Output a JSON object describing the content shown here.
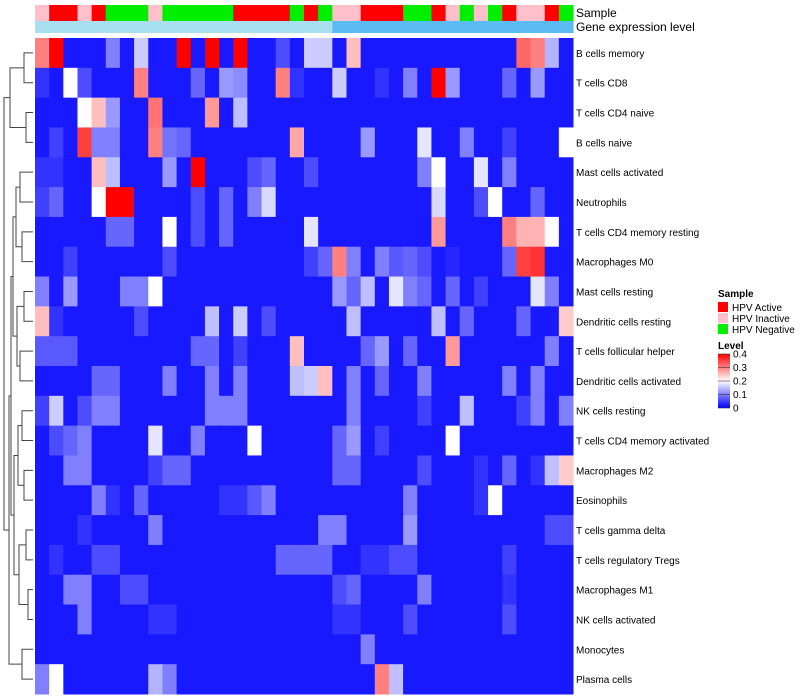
{
  "chart_data": {
    "type": "heatmap",
    "title": "",
    "annotation_labels": [
      "Sample",
      "Gene expression level"
    ],
    "row_labels": [
      "B cells memory",
      "T cells CD8",
      "T cells CD4 naive",
      "B cells naive",
      "Mast cells activated",
      "Neutrophils",
      "T cells CD4 memory resting",
      "Macrophages M0",
      "Mast cells resting",
      "Dendritic cells resting",
      "T cells follicular helper",
      "Dendritic cells activated",
      "NK cells resting",
      "T cells CD4 memory activated",
      "Macrophages M2",
      "Eosinophils",
      "T cells gamma delta",
      "T cells regulatory  Tregs",
      "Macrophages M1",
      "NK cells activated",
      "Monocytes",
      "Plasma cells"
    ],
    "sample_groups": [
      "I",
      "A",
      "A",
      "I",
      "A",
      "N",
      "N",
      "N",
      "I",
      "N",
      "N",
      "N",
      "N",
      "N",
      "A",
      "A",
      "A",
      "A",
      "N",
      "A",
      "N",
      "I",
      "I",
      "A",
      "A",
      "A",
      "N",
      "N",
      "A",
      "I",
      "N",
      "I",
      "N",
      "A",
      "I",
      "I",
      "A",
      "N"
    ],
    "expression_bar": [
      "Low",
      "Low",
      "Low",
      "Low",
      "Low",
      "Low",
      "Low",
      "Low",
      "Low",
      "Low",
      "Low",
      "Low",
      "Low",
      "Low",
      "Low",
      "Low",
      "Low",
      "Low",
      "Low",
      "Low",
      "Low",
      "High",
      "High",
      "High",
      "High",
      "High",
      "High",
      "High",
      "High",
      "High",
      "High",
      "High",
      "High",
      "High",
      "High",
      "High",
      "High",
      "High"
    ],
    "values": [
      [
        0.3,
        0.4,
        0.02,
        0.02,
        0.02,
        0.1,
        0.02,
        0.16,
        0.02,
        0.02,
        0.4,
        0.02,
        0.4,
        0.02,
        0.4,
        0.02,
        0.02,
        0.06,
        0.02,
        0.16,
        0.16,
        0.02,
        0.25,
        0.02,
        0.02,
        0.02,
        0.02,
        0.02,
        0.02,
        0.02,
        0.02,
        0.02,
        0.02,
        0.02,
        0.32,
        0.3,
        0.14,
        0.02
      ],
      [
        0.04,
        0.02,
        0.2,
        0.06,
        0.02,
        0.02,
        0.02,
        0.3,
        0.02,
        0.02,
        0.02,
        0.08,
        0.02,
        0.12,
        0.11,
        0.02,
        0.02,
        0.3,
        0.04,
        0.02,
        0.02,
        0.16,
        0.02,
        0.02,
        0.04,
        0.02,
        0.1,
        0.02,
        0.4,
        0.12,
        0.02,
        0.02,
        0.02,
        0.08,
        0.02,
        0.12,
        0.02,
        0.02
      ],
      [
        0.02,
        0.02,
        0.02,
        0.2,
        0.25,
        0.12,
        0.02,
        0.02,
        0.31,
        0.02,
        0.02,
        0.02,
        0.28,
        0.02,
        0.15,
        0.02,
        0.02,
        0.02,
        0.02,
        0.02,
        0.02,
        0.02,
        0.02,
        0.02,
        0.02,
        0.02,
        0.02,
        0.02,
        0.02,
        0.02,
        0.02,
        0.02,
        0.02,
        0.02,
        0.02,
        0.02,
        0.02,
        0.02
      ],
      [
        0.02,
        0.05,
        0.02,
        0.35,
        0.1,
        0.1,
        0.02,
        0.02,
        0.3,
        0.09,
        0.08,
        0.02,
        0.02,
        0.02,
        0.02,
        0.02,
        0.02,
        0.02,
        0.27,
        0.02,
        0.02,
        0.02,
        0.02,
        0.12,
        0.02,
        0.02,
        0.02,
        0.18,
        0.02,
        0.02,
        0.1,
        0.02,
        0.02,
        0.05,
        0.02,
        0.02,
        0.02,
        0.2
      ],
      [
        0.04,
        0.04,
        0.02,
        0.02,
        0.25,
        0.15,
        0.02,
        0.02,
        0.02,
        0.12,
        0.02,
        0.4,
        0.02,
        0.02,
        0.02,
        0.06,
        0.08,
        0.02,
        0.02,
        0.06,
        0.02,
        0.02,
        0.02,
        0.02,
        0.02,
        0.02,
        0.02,
        0.1,
        0.2,
        0.02,
        0.02,
        0.18,
        0.02,
        0.1,
        0.02,
        0.02,
        0.02,
        0.02
      ],
      [
        0.05,
        0.08,
        0.02,
        0.02,
        0.2,
        0.4,
        0.4,
        0.02,
        0.02,
        0.02,
        0.02,
        0.06,
        0.02,
        0.08,
        0.02,
        0.1,
        0.17,
        0.02,
        0.02,
        0.02,
        0.02,
        0.02,
        0.02,
        0.02,
        0.02,
        0.02,
        0.02,
        0.02,
        0.17,
        0.02,
        0.02,
        0.06,
        0.2,
        0.02,
        0.02,
        0.08,
        0.02,
        0.02
      ],
      [
        0.02,
        0.02,
        0.02,
        0.02,
        0.02,
        0.08,
        0.08,
        0.02,
        0.02,
        0.2,
        0.02,
        0.06,
        0.02,
        0.08,
        0.02,
        0.02,
        0.02,
        0.02,
        0.02,
        0.18,
        0.02,
        0.02,
        0.02,
        0.02,
        0.02,
        0.02,
        0.02,
        0.02,
        0.28,
        0.02,
        0.02,
        0.02,
        0.02,
        0.3,
        0.26,
        0.26,
        0.2,
        0.02
      ],
      [
        0.02,
        0.02,
        0.05,
        0.02,
        0.02,
        0.02,
        0.02,
        0.02,
        0.02,
        0.06,
        0.02,
        0.02,
        0.02,
        0.02,
        0.02,
        0.02,
        0.02,
        0.02,
        0.02,
        0.05,
        0.08,
        0.3,
        0.1,
        0.02,
        0.1,
        0.07,
        0.08,
        0.06,
        0.02,
        0.03,
        0.02,
        0.02,
        0.02,
        0.08,
        0.35,
        0.36,
        0.02,
        0.02
      ],
      [
        0.1,
        0.02,
        0.12,
        0.02,
        0.02,
        0.02,
        0.1,
        0.1,
        0.2,
        0.02,
        0.02,
        0.02,
        0.02,
        0.02,
        0.02,
        0.02,
        0.02,
        0.02,
        0.02,
        0.02,
        0.02,
        0.12,
        0.08,
        0.15,
        0.02,
        0.18,
        0.1,
        0.08,
        0.02,
        0.08,
        0.02,
        0.05,
        0.02,
        0.02,
        0.02,
        0.18,
        0.1,
        0.02
      ],
      [
        0.25,
        0.04,
        0.02,
        0.02,
        0.02,
        0.02,
        0.02,
        0.06,
        0.02,
        0.02,
        0.02,
        0.02,
        0.15,
        0.02,
        0.16,
        0.02,
        0.06,
        0.02,
        0.02,
        0.02,
        0.02,
        0.02,
        0.15,
        0.02,
        0.02,
        0.02,
        0.02,
        0.02,
        0.15,
        0.02,
        0.08,
        0.02,
        0.02,
        0.02,
        0.08,
        0.02,
        0.02,
        0.24
      ],
      [
        0.07,
        0.07,
        0.07,
        0.02,
        0.02,
        0.02,
        0.02,
        0.02,
        0.02,
        0.02,
        0.02,
        0.08,
        0.08,
        0.02,
        0.05,
        0.02,
        0.02,
        0.02,
        0.25,
        0.02,
        0.02,
        0.02,
        0.02,
        0.08,
        0.12,
        0.02,
        0.08,
        0.02,
        0.02,
        0.28,
        0.02,
        0.02,
        0.02,
        0.02,
        0.02,
        0.02,
        0.1,
        0.02
      ],
      [
        0.02,
        0.02,
        0.02,
        0.02,
        0.08,
        0.08,
        0.02,
        0.02,
        0.02,
        0.1,
        0.02,
        0.02,
        0.1,
        0.02,
        0.1,
        0.02,
        0.02,
        0.02,
        0.15,
        0.16,
        0.25,
        0.02,
        0.1,
        0.02,
        0.08,
        0.02,
        0.02,
        0.1,
        0.02,
        0.02,
        0.02,
        0.02,
        0.02,
        0.1,
        0.02,
        0.1,
        0.02,
        0.02
      ],
      [
        0.05,
        0.16,
        0.02,
        0.06,
        0.1,
        0.1,
        0.02,
        0.02,
        0.02,
        0.02,
        0.02,
        0.02,
        0.1,
        0.1,
        0.1,
        0.02,
        0.02,
        0.02,
        0.02,
        0.02,
        0.02,
        0.02,
        0.1,
        0.02,
        0.02,
        0.02,
        0.02,
        0.05,
        0.02,
        0.02,
        0.15,
        0.02,
        0.02,
        0.02,
        0.05,
        0.1,
        0.02,
        0.1
      ],
      [
        0.02,
        0.06,
        0.08,
        0.1,
        0.02,
        0.02,
        0.02,
        0.02,
        0.18,
        0.02,
        0.02,
        0.1,
        0.02,
        0.02,
        0.02,
        0.2,
        0.02,
        0.02,
        0.02,
        0.02,
        0.02,
        0.08,
        0.12,
        0.02,
        0.05,
        0.02,
        0.02,
        0.02,
        0.02,
        0.2,
        0.02,
        0.02,
        0.02,
        0.02,
        0.02,
        0.02,
        0.02,
        0.02
      ],
      [
        0.02,
        0.02,
        0.1,
        0.1,
        0.02,
        0.02,
        0.02,
        0.02,
        0.05,
        0.08,
        0.08,
        0.02,
        0.02,
        0.02,
        0.02,
        0.02,
        0.02,
        0.02,
        0.02,
        0.02,
        0.02,
        0.08,
        0.08,
        0.02,
        0.02,
        0.02,
        0.02,
        0.06,
        0.02,
        0.02,
        0.02,
        0.04,
        0.02,
        0.08,
        0.02,
        0.04,
        0.15,
        0.24
      ],
      [
        0.02,
        0.02,
        0.02,
        0.02,
        0.1,
        0.04,
        0.02,
        0.08,
        0.02,
        0.02,
        0.02,
        0.02,
        0.02,
        0.04,
        0.04,
        0.07,
        0.1,
        0.02,
        0.02,
        0.02,
        0.02,
        0.02,
        0.02,
        0.02,
        0.02,
        0.02,
        0.1,
        0.02,
        0.02,
        0.02,
        0.02,
        0.04,
        0.2,
        0.02,
        0.02,
        0.02,
        0.02,
        0.02
      ],
      [
        0.02,
        0.02,
        0.02,
        0.04,
        0.02,
        0.02,
        0.02,
        0.02,
        0.1,
        0.02,
        0.02,
        0.02,
        0.02,
        0.02,
        0.02,
        0.02,
        0.02,
        0.02,
        0.02,
        0.02,
        0.1,
        0.1,
        0.02,
        0.02,
        0.02,
        0.02,
        0.12,
        0.02,
        0.02,
        0.02,
        0.02,
        0.02,
        0.02,
        0.02,
        0.02,
        0.02,
        0.06,
        0.06
      ],
      [
        0.02,
        0.04,
        0.02,
        0.02,
        0.06,
        0.06,
        0.02,
        0.02,
        0.02,
        0.02,
        0.02,
        0.02,
        0.02,
        0.02,
        0.02,
        0.02,
        0.02,
        0.08,
        0.08,
        0.08,
        0.08,
        0.02,
        0.02,
        0.04,
        0.04,
        0.06,
        0.06,
        0.02,
        0.02,
        0.02,
        0.02,
        0.02,
        0.02,
        0.05,
        0.02,
        0.02,
        0.02,
        0.02
      ],
      [
        0.02,
        0.02,
        0.1,
        0.1,
        0.02,
        0.02,
        0.06,
        0.06,
        0.02,
        0.02,
        0.02,
        0.02,
        0.02,
        0.02,
        0.02,
        0.02,
        0.02,
        0.02,
        0.02,
        0.02,
        0.02,
        0.06,
        0.08,
        0.02,
        0.02,
        0.02,
        0.02,
        0.1,
        0.02,
        0.02,
        0.02,
        0.02,
        0.02,
        0.04,
        0.02,
        0.02,
        0.02,
        0.02
      ],
      [
        0.02,
        0.02,
        0.02,
        0.1,
        0.02,
        0.02,
        0.02,
        0.02,
        0.04,
        0.04,
        0.02,
        0.02,
        0.02,
        0.02,
        0.02,
        0.02,
        0.02,
        0.02,
        0.02,
        0.02,
        0.02,
        0.04,
        0.04,
        0.02,
        0.02,
        0.02,
        0.06,
        0.02,
        0.02,
        0.02,
        0.02,
        0.02,
        0.02,
        0.06,
        0.02,
        0.02,
        0.02,
        0.02
      ],
      [
        0.02,
        0.02,
        0.02,
        0.02,
        0.02,
        0.02,
        0.02,
        0.02,
        0.02,
        0.02,
        0.02,
        0.02,
        0.02,
        0.02,
        0.02,
        0.02,
        0.02,
        0.02,
        0.02,
        0.02,
        0.02,
        0.02,
        0.02,
        0.1,
        0.02,
        0.02,
        0.02,
        0.02,
        0.02,
        0.02,
        0.02,
        0.02,
        0.02,
        0.02,
        0.02,
        0.02,
        0.02,
        0.02
      ],
      [
        0.1,
        0.2,
        0.02,
        0.02,
        0.02,
        0.02,
        0.02,
        0.02,
        0.14,
        0.1,
        0.02,
        0.02,
        0.02,
        0.02,
        0.02,
        0.02,
        0.02,
        0.02,
        0.02,
        0.02,
        0.02,
        0.02,
        0.02,
        0.02,
        0.3,
        0.15,
        0.02,
        0.02,
        0.02,
        0.02,
        0.02,
        0.02,
        0.02,
        0.02,
        0.02,
        0.02,
        0.02,
        0.02
      ]
    ],
    "legend": {
      "sample_title": "Sample",
      "sample_entries": [
        {
          "key": "A",
          "label": "HPV Active",
          "color": "#ff0000"
        },
        {
          "key": "I",
          "label": "HPV Inactive",
          "color": "#ffc0cb"
        },
        {
          "key": "N",
          "label": "HPV Negative",
          "color": "#00ee00"
        }
      ],
      "level_title": "Level",
      "level_ticks": [
        0.4,
        0.3,
        0.2,
        0.1,
        0
      ],
      "level_range": [
        0,
        0.4
      ],
      "colors": {
        "low": "#0000ff",
        "mid": "#ffffff",
        "high": "#ff0000"
      }
    },
    "expression_colors": {
      "Low": "#a8e0f0",
      "High": "#5bbcf2"
    }
  }
}
